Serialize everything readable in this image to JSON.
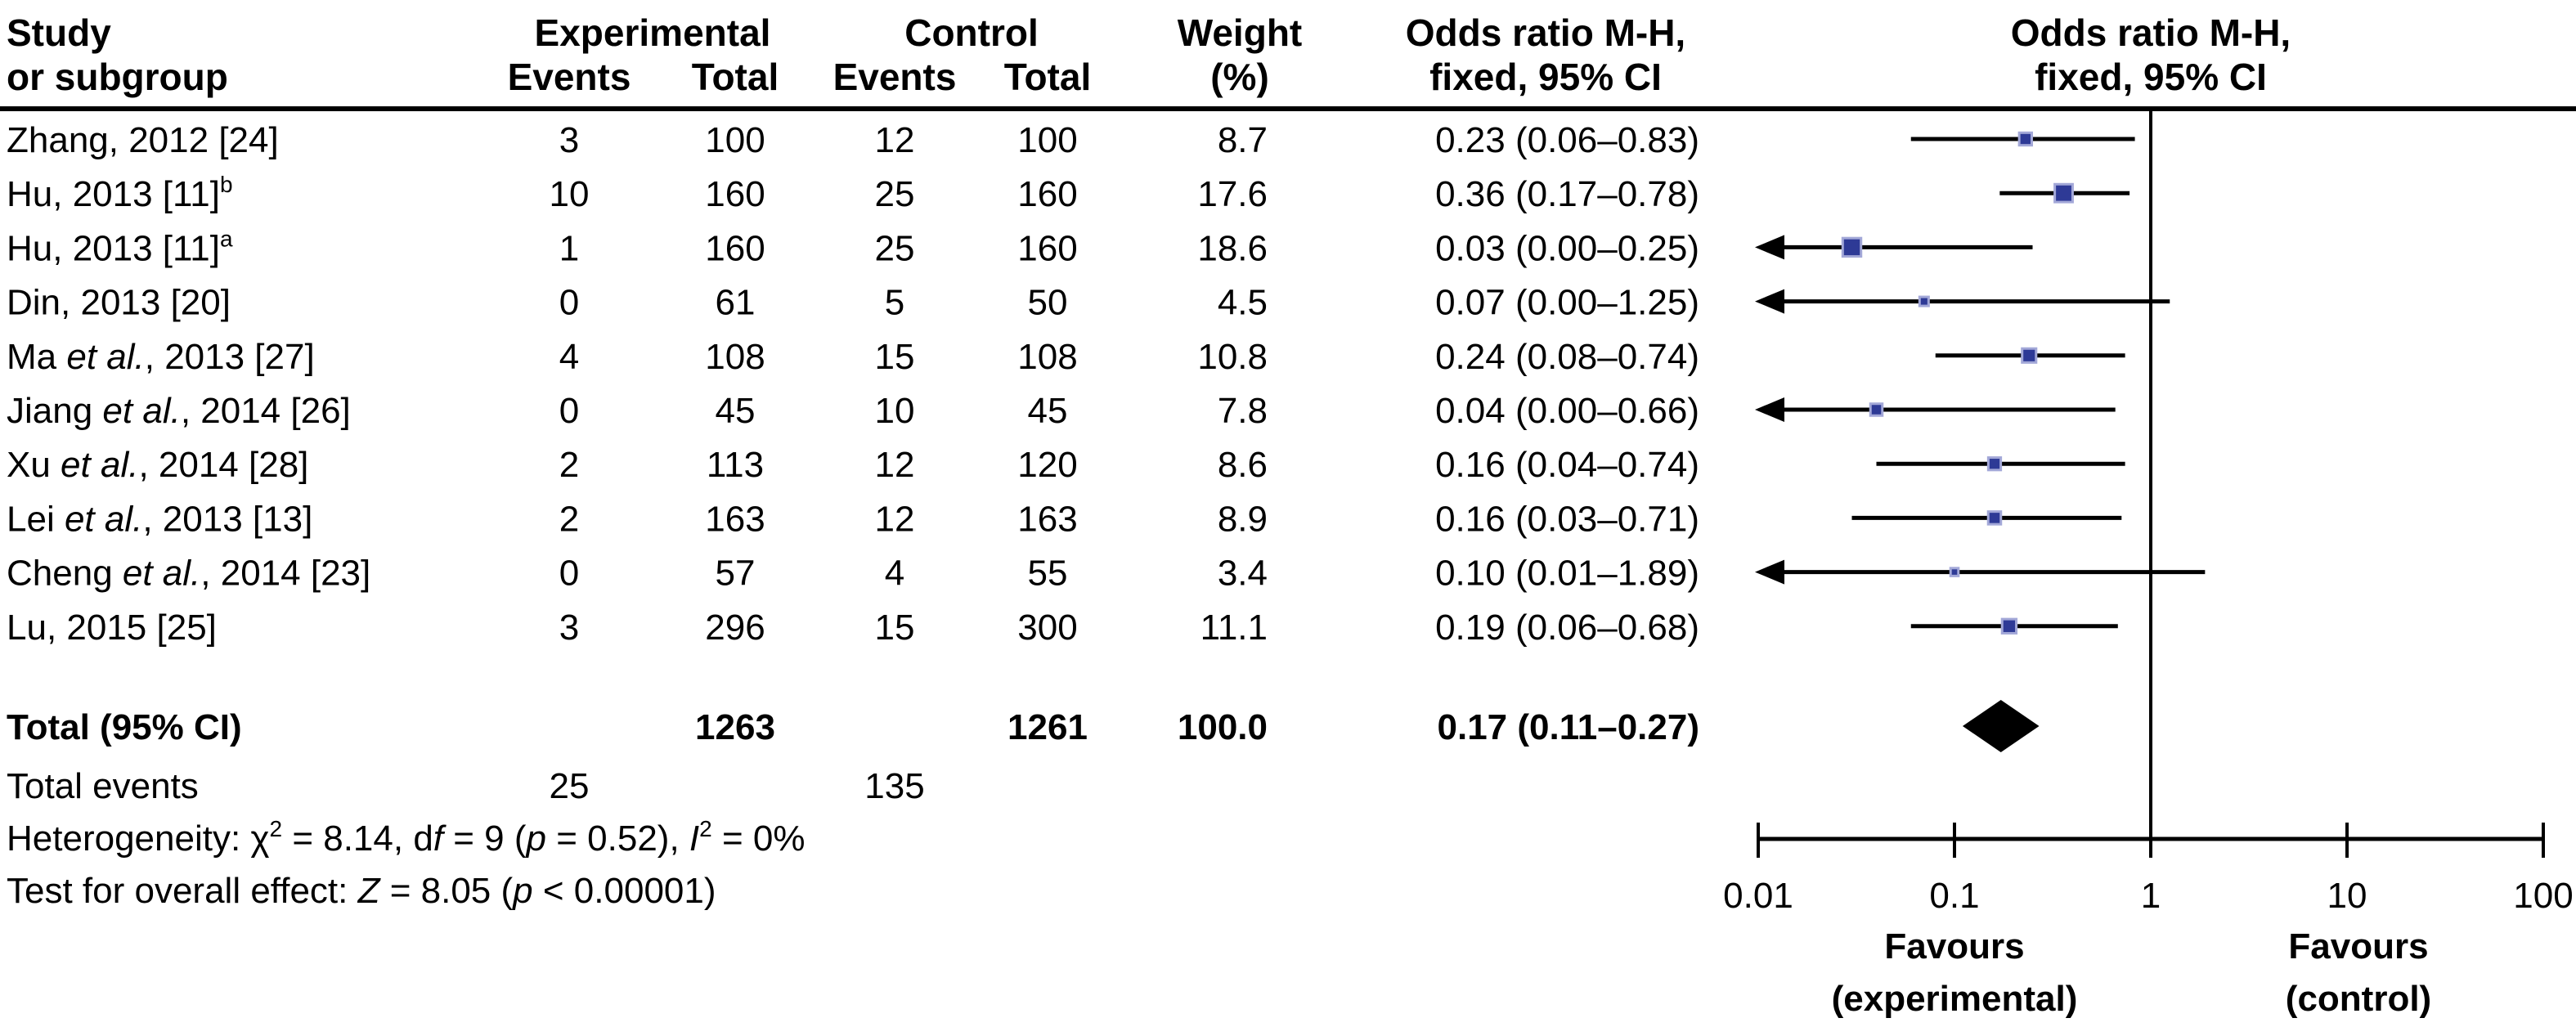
{
  "figure": {
    "background": "#ffffff",
    "text_color": "#000000",
    "line_color": "#000000",
    "marker_fill": "#2e3a96",
    "marker_stroke": "#a3a8d8",
    "diamond_color": "#000000"
  },
  "chart_data": {
    "type": "forest",
    "effect_measure": "Odds ratio M-H, fixed, 95% CI",
    "header": {
      "study_line1": "Study",
      "study_line2": "or subgroup",
      "experimental_group": "Experimental",
      "control_group": "Control",
      "events": "Events",
      "total": "Total",
      "weight_line1": "Weight",
      "weight_line2": "(%)",
      "or_col_line1": "Odds ratio M-H,",
      "or_col_line2": "fixed, 95% CI",
      "plot_col_line1": "Odds ratio M-H,",
      "plot_col_line2": "fixed, 95% CI"
    },
    "studies": [
      {
        "name_segments": [
          {
            "t": "Zhang, 2012 [24]"
          }
        ],
        "exp_events": "3",
        "exp_total": "100",
        "ctrl_events": "12",
        "ctrl_total": "100",
        "weight": "8.7",
        "or": 0.23,
        "ci_low": 0.06,
        "ci_high": 0.83,
        "or_label": "0.23 (0.06–0.83)",
        "arrow_low": false
      },
      {
        "name_segments": [
          {
            "t": "Hu, 2013 [11]"
          },
          {
            "t": "b",
            "sup": true
          }
        ],
        "exp_events": "10",
        "exp_total": "160",
        "ctrl_events": "25",
        "ctrl_total": "160",
        "weight": "17.6",
        "or": 0.36,
        "ci_low": 0.17,
        "ci_high": 0.78,
        "or_label": "0.36 (0.17–0.78)",
        "arrow_low": false
      },
      {
        "name_segments": [
          {
            "t": "Hu, 2013 [11]"
          },
          {
            "t": "a",
            "sup": true
          }
        ],
        "exp_events": "1",
        "exp_total": "160",
        "ctrl_events": "25",
        "ctrl_total": "160",
        "weight": "18.6",
        "or": 0.03,
        "ci_low": 0.003,
        "ci_high": 0.25,
        "or_label": "0.03 (0.00–0.25)",
        "arrow_low": true
      },
      {
        "name_segments": [
          {
            "t": "Din, 2013 [20]"
          }
        ],
        "exp_events": "0",
        "exp_total": "61",
        "ctrl_events": "5",
        "ctrl_total": "50",
        "weight": "4.5",
        "or": 0.07,
        "ci_low": 0.003,
        "ci_high": 1.25,
        "or_label": "0.07 (0.00–1.25)",
        "arrow_low": true
      },
      {
        "name_segments": [
          {
            "t": "Ma "
          },
          {
            "t": "et al.",
            "italic": true
          },
          {
            "t": ", 2013 [27]"
          }
        ],
        "exp_events": "4",
        "exp_total": "108",
        "ctrl_events": "15",
        "ctrl_total": "108",
        "weight": "10.8",
        "or": 0.24,
        "ci_low": 0.08,
        "ci_high": 0.74,
        "or_label": "0.24 (0.08–0.74)",
        "arrow_low": false
      },
      {
        "name_segments": [
          {
            "t": "Jiang "
          },
          {
            "t": "et al.",
            "italic": true
          },
          {
            "t": ", 2014 [26]"
          }
        ],
        "exp_events": "0",
        "exp_total": "45",
        "ctrl_events": "10",
        "ctrl_total": "45",
        "weight": "7.8",
        "or": 0.04,
        "ci_low": 0.003,
        "ci_high": 0.66,
        "or_label": "0.04 (0.00–0.66)",
        "arrow_low": true
      },
      {
        "name_segments": [
          {
            "t": "Xu "
          },
          {
            "t": "et al.",
            "italic": true
          },
          {
            "t": ", 2014 [28]"
          }
        ],
        "exp_events": "2",
        "exp_total": "113",
        "ctrl_events": "12",
        "ctrl_total": "120",
        "weight": "8.6",
        "or": 0.16,
        "ci_low": 0.04,
        "ci_high": 0.74,
        "or_label": "0.16 (0.04–0.74)",
        "arrow_low": false
      },
      {
        "name_segments": [
          {
            "t": "Lei "
          },
          {
            "t": "et al.",
            "italic": true
          },
          {
            "t": ", 2013 [13]"
          }
        ],
        "exp_events": "2",
        "exp_total": "163",
        "ctrl_events": "12",
        "ctrl_total": "163",
        "weight": "8.9",
        "or": 0.16,
        "ci_low": 0.03,
        "ci_high": 0.71,
        "or_label": "0.16 (0.03–0.71)",
        "arrow_low": false
      },
      {
        "name_segments": [
          {
            "t": "Cheng "
          },
          {
            "t": "et al.",
            "italic": true
          },
          {
            "t": ", 2014 [23]"
          }
        ],
        "exp_events": "0",
        "exp_total": "57",
        "ctrl_events": "4",
        "ctrl_total": "55",
        "weight": "3.4",
        "or": 0.1,
        "ci_low": 0.01,
        "ci_high": 1.89,
        "or_label": "0.10 (0.01–1.89)",
        "arrow_low": true
      },
      {
        "name_segments": [
          {
            "t": "Lu, 2015 [25]"
          }
        ],
        "exp_events": "3",
        "exp_total": "296",
        "ctrl_events": "15",
        "ctrl_total": "300",
        "weight": "11.1",
        "or": 0.19,
        "ci_low": 0.06,
        "ci_high": 0.68,
        "or_label": "0.19 (0.06–0.68)",
        "arrow_low": false
      }
    ],
    "total": {
      "label": "Total (95% CI)",
      "exp_total": "1263",
      "ctrl_total": "1261",
      "weight": "100.0",
      "or": 0.17,
      "ci_low": 0.11,
      "ci_high": 0.27,
      "or_label": "0.17 (0.11–0.27)"
    },
    "total_events": {
      "label": "Total events",
      "exp": "25",
      "ctrl": "135"
    },
    "heterogeneity_segments": [
      {
        "t": "Heterogeneity: "
      },
      {
        "t": "χ"
      },
      {
        "t": "2",
        "sup": true
      },
      {
        "t": " = 8.14, d"
      },
      {
        "t": "f",
        "italic": true
      },
      {
        "t": " = 9 ("
      },
      {
        "t": "p",
        "italic": true
      },
      {
        "t": " = 0.52), "
      },
      {
        "t": "I",
        "italic": true
      },
      {
        "t": "2",
        "sup": true
      },
      {
        "t": " = 0%"
      }
    ],
    "overall_effect_segments": [
      {
        "t": "Test for overall effect: "
      },
      {
        "t": "Z",
        "italic": true
      },
      {
        "t": " = 8.05 ("
      },
      {
        "t": "p",
        "italic": true
      },
      {
        "t": " < 0.00001)"
      }
    ],
    "axis": {
      "scale": "log10",
      "min": 0.01,
      "max": 100,
      "ticks": [
        0.01,
        0.1,
        1,
        10,
        100
      ],
      "tick_labels": [
        "0.01",
        "0.1",
        "1",
        "10",
        "100"
      ],
      "reference_value": 1
    },
    "favours_left": [
      "Favours",
      "(experimental)"
    ],
    "favours_right": [
      "Favours",
      "(control)"
    ]
  }
}
